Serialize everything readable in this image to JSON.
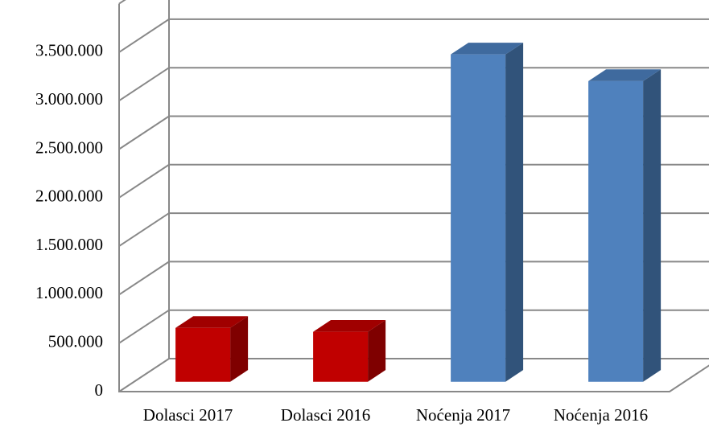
{
  "chart_data": {
    "type": "bar3d",
    "categories": [
      "Dolasci 2017",
      "Dolasci 2016",
      "Noćenja 2017",
      "Noćenja 2016"
    ],
    "values": [
      555000,
      515000,
      3375000,
      3100000
    ],
    "colors": [
      "#c00000",
      "#c00000",
      "#4f81bd",
      "#4f81bd"
    ],
    "ylim": [
      0,
      4000000
    ],
    "yticks": [
      0,
      {
        "value": 500000,
        "label": "500.000"
      },
      {
        "value": 1000000,
        "label": "1.000.000"
      },
      {
        "value": 1500000,
        "label": "1.500.000"
      },
      {
        "value": 2000000,
        "label": "2.000.000"
      },
      {
        "value": 2500000,
        "label": "2.500.000"
      },
      {
        "value": 3000000,
        "label": "3.000.000"
      },
      {
        "value": 3500000,
        "label": "3.500.000"
      }
    ],
    "grid": true
  }
}
